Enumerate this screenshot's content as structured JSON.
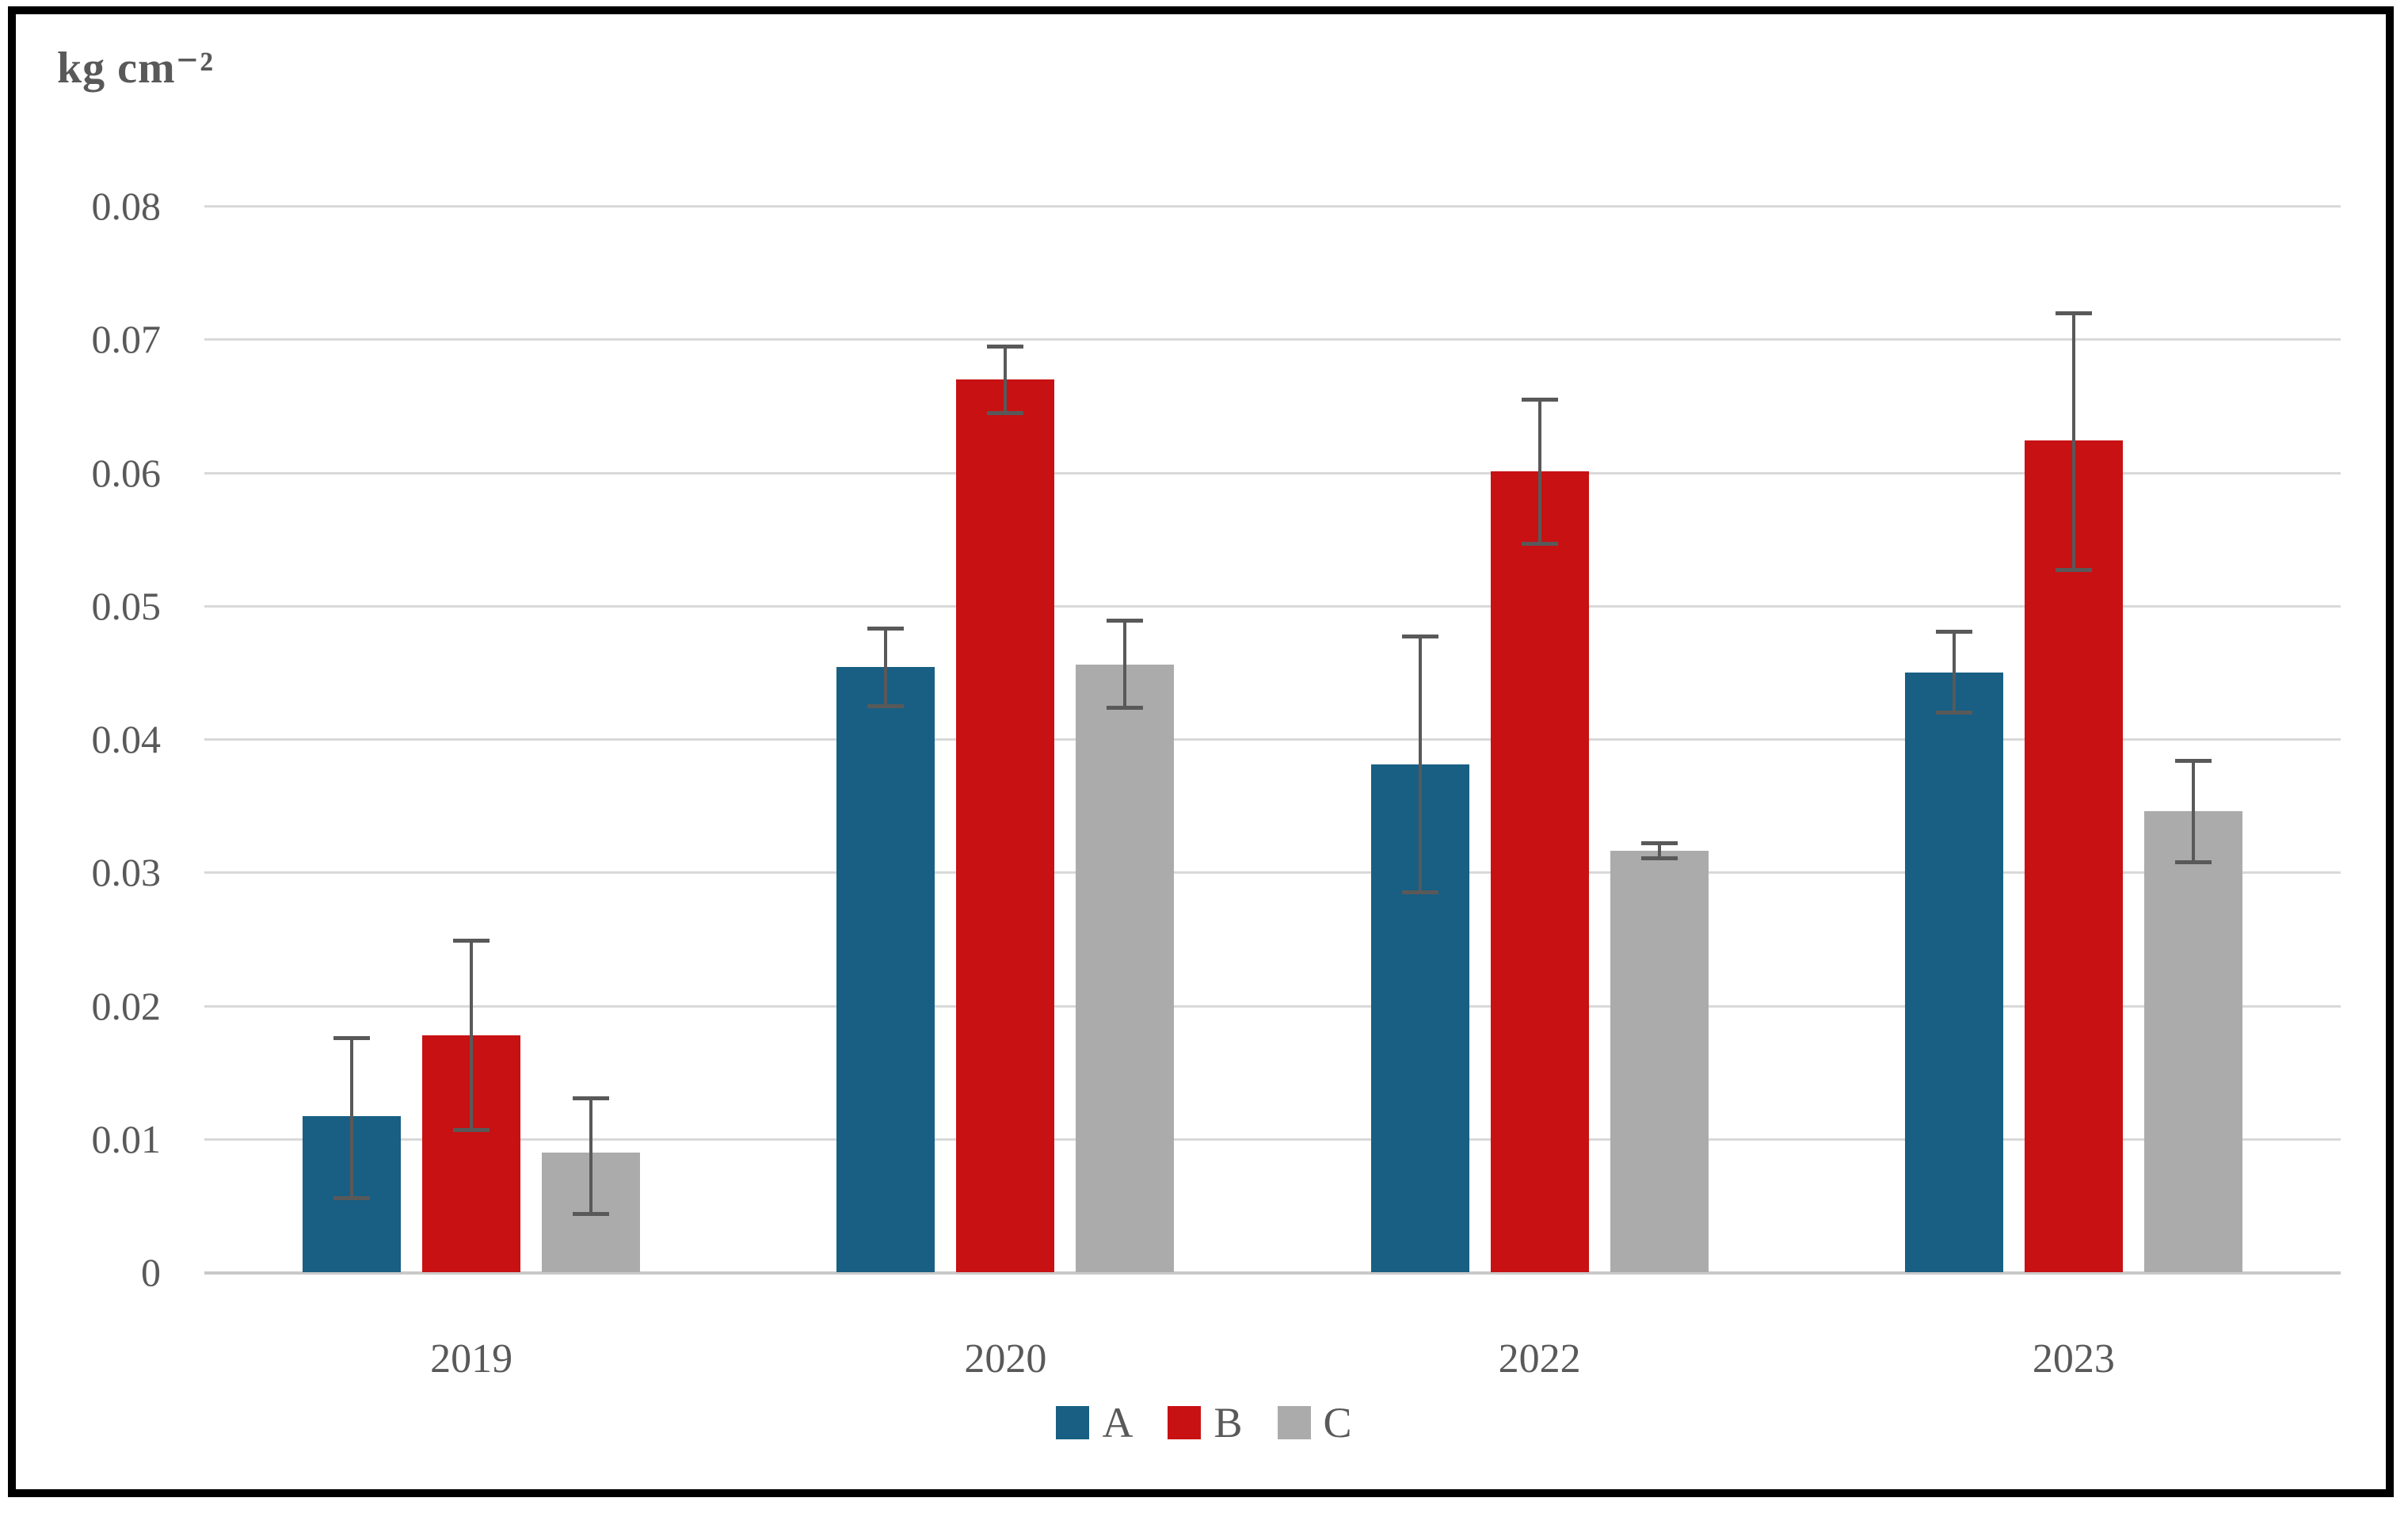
{
  "chart_data": {
    "type": "bar",
    "title": "",
    "ylabel": "kg cm⁻²",
    "xlabel": "",
    "categories": [
      "2019",
      "2020",
      "2022",
      "2023"
    ],
    "series": [
      {
        "name": "A",
        "color": "#185F83",
        "values": [
          0.0117,
          0.0454,
          0.0381,
          0.045
        ],
        "error_low": [
          0.0056,
          0.0425,
          0.0285,
          0.042
        ],
        "error_high": [
          0.0176,
          0.0483,
          0.0477,
          0.0481
        ]
      },
      {
        "name": "B",
        "color": "#C81113",
        "values": [
          0.0178,
          0.067,
          0.0601,
          0.0624
        ],
        "error_low": [
          0.0107,
          0.0645,
          0.0547,
          0.0527
        ],
        "error_high": [
          0.0249,
          0.0695,
          0.0655,
          0.072
        ]
      },
      {
        "name": "C",
        "color": "#ABABAB",
        "values": [
          0.009,
          0.0456,
          0.0316,
          0.0346
        ],
        "error_low": [
          0.0044,
          0.0424,
          0.0311,
          0.0308
        ],
        "error_high": [
          0.0131,
          0.0489,
          0.0322,
          0.0384
        ]
      }
    ],
    "y_ticks": [
      "0.08",
      "0.07",
      "0.06",
      "0.05",
      "0.04",
      "0.03",
      "0.02",
      "0.01",
      "0"
    ],
    "ylim": [
      0,
      0.08
    ],
    "grid": true,
    "legend_position": "bottom",
    "gridline_color": "#D9D9D9",
    "baseline_color": "#C9C9C9",
    "error_bar_color": "#595959",
    "text_color": "#595959",
    "frame_color": "#000000"
  }
}
